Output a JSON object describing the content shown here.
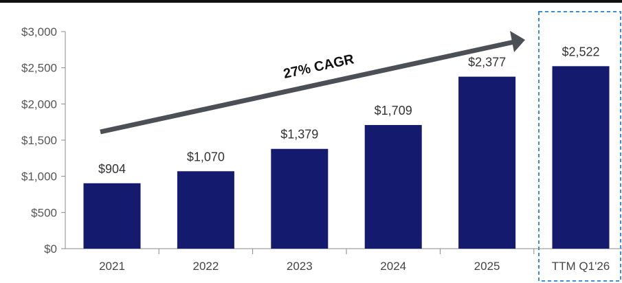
{
  "chart_data": {
    "type": "bar",
    "categories": [
      "2021",
      "2022",
      "2023",
      "2024",
      "2025",
      "TTM Q1'26"
    ],
    "values": [
      904,
      1070,
      1379,
      1709,
      2377,
      2522
    ],
    "data_labels": [
      "$904",
      "$1,070",
      "$1,379",
      "$1,709",
      "$2,377",
      "$2,522"
    ],
    "ylim": [
      0,
      3000
    ],
    "yticks": [
      0,
      500,
      1000,
      1500,
      2000,
      2500,
      3000
    ],
    "ytick_labels": [
      "$0",
      "$500",
      "$1,000",
      "$1,500",
      "$2,000",
      "$2,500",
      "$3,000"
    ],
    "grid": false,
    "title": "",
    "xlabel": "",
    "ylabel": "",
    "annotation": "27% CAGR",
    "highlighted_category": "TTM Q1'26"
  },
  "colors": {
    "bar": "#141a6e",
    "axis": "#888888",
    "arrow": "#4a5055",
    "highlight_box": "#3b8fd9",
    "top_rule": "#111111"
  }
}
